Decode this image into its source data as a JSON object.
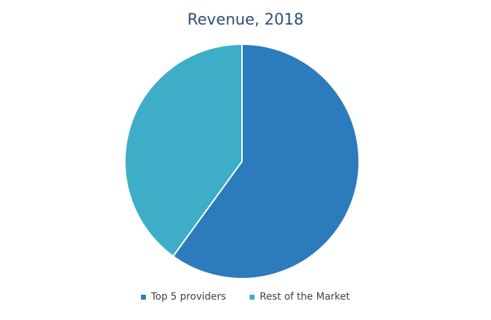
{
  "chart_data": {
    "type": "pie",
    "title": "Revenue, 2018",
    "categories": [
      "Top 5 providers",
      "Rest of the Market"
    ],
    "values": [
      60,
      40
    ],
    "colors": [
      "#2b7bbd",
      "#3eaec8"
    ],
    "start_angle_deg": 0,
    "direction": "clockwise",
    "legend_position": "bottom",
    "slice_border_color": "#ffffff"
  }
}
